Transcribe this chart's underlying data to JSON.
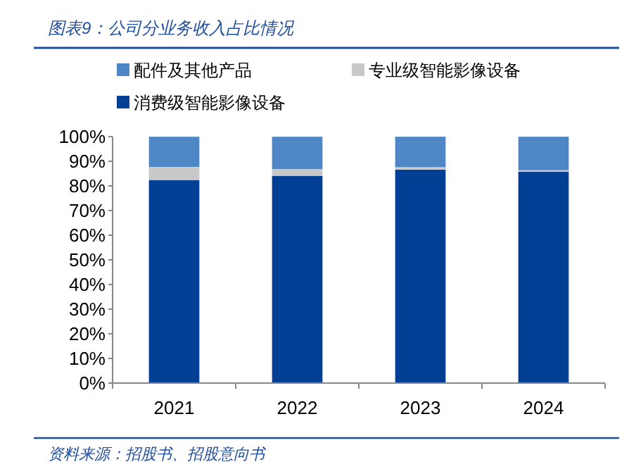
{
  "chart_data": {
    "type": "bar",
    "stacked": true,
    "title": "图表9：公司分业务收入占比情况",
    "categories": [
      "2021",
      "2022",
      "2023",
      "2024"
    ],
    "series": [
      {
        "name": "消费级智能影像设备",
        "color": "#003f94",
        "values": [
          82.5,
          84.2,
          86.7,
          85.9
        ]
      },
      {
        "name": "专业级智能影像设备",
        "color": "#c8c8c8",
        "values": [
          5.1,
          2.5,
          0.8,
          0.4
        ]
      },
      {
        "name": "配件及其他产品",
        "color": "#4f86c6",
        "values": [
          12.4,
          13.3,
          12.5,
          13.7
        ]
      }
    ],
    "ylim": [
      0,
      100
    ],
    "yticks": [
      {
        "value": 0,
        "label": "0%"
      },
      {
        "value": 10,
        "label": "10%"
      },
      {
        "value": 20,
        "label": "20%"
      },
      {
        "value": 30,
        "label": "30%"
      },
      {
        "value": 40,
        "label": "40%"
      },
      {
        "value": 50,
        "label": "50%"
      },
      {
        "value": 60,
        "label": "60%"
      },
      {
        "value": 70,
        "label": "70%"
      },
      {
        "value": 80,
        "label": "80%"
      },
      {
        "value": 90,
        "label": "90%"
      },
      {
        "value": 100,
        "label": "100%"
      }
    ],
    "legend": "top",
    "grid": false,
    "annotations": [
      "资料来源：招股书、招股意向书"
    ]
  }
}
